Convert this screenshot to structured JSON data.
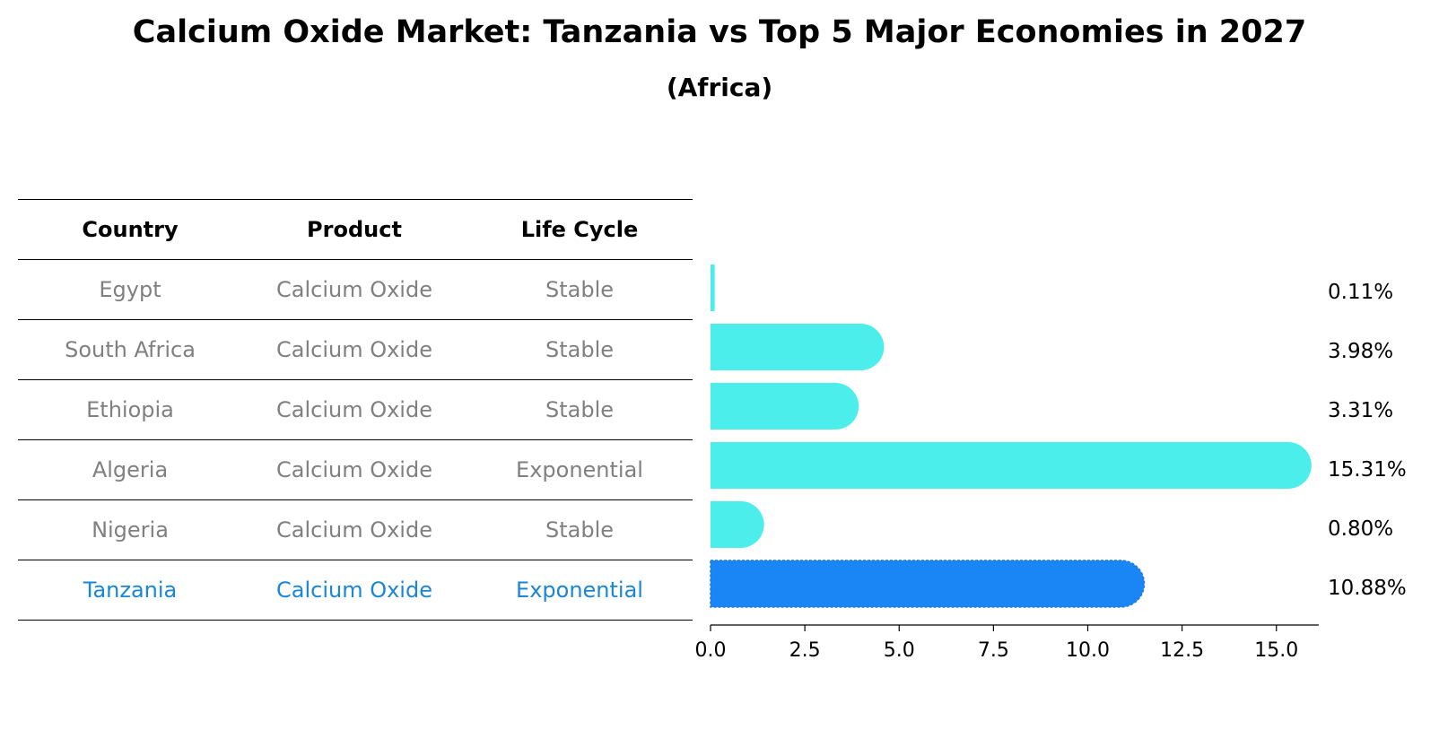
{
  "chart_data": {
    "type": "bar",
    "orientation": "horizontal",
    "title": "Calcium Oxide Market: Tanzania vs Top 5 Major Economies in 2027",
    "subtitle": "(Africa)",
    "table_headers": [
      "Country",
      "Product",
      "Life Cycle"
    ],
    "rows": [
      {
        "country": "Egypt",
        "product": "Calcium Oxide",
        "life_cycle": "Stable",
        "value": 0.11,
        "label": "0.11%",
        "highlight": false
      },
      {
        "country": "South Africa",
        "product": "Calcium Oxide",
        "life_cycle": "Stable",
        "value": 3.98,
        "label": "3.98%",
        "highlight": false
      },
      {
        "country": "Ethiopia",
        "product": "Calcium Oxide",
        "life_cycle": "Stable",
        "value": 3.31,
        "label": "3.31%",
        "highlight": false
      },
      {
        "country": "Algeria",
        "product": "Calcium Oxide",
        "life_cycle": "Exponential",
        "value": 15.31,
        "label": "15.31%",
        "highlight": false
      },
      {
        "country": "Nigeria",
        "product": "Calcium Oxide",
        "life_cycle": "Stable",
        "value": 0.8,
        "label": "0.80%",
        "highlight": false
      },
      {
        "country": "Tanzania",
        "product": "Calcium Oxide",
        "life_cycle": "Exponential",
        "value": 10.88,
        "label": "10.88%",
        "highlight": true
      }
    ],
    "xlim": [
      0,
      16.2
    ],
    "xticks": [
      "0.0",
      "2.5",
      "5.0",
      "7.5",
      "10.0",
      "12.5",
      "15.0"
    ],
    "colors": {
      "bar": "#4beeea",
      "highlight_bar": "#1a86f5",
      "highlight_text": "#1a86d6",
      "body_text": "#808080"
    }
  }
}
